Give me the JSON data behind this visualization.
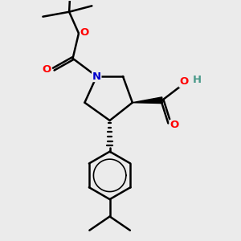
{
  "bg_color": "#ebebeb",
  "bond_color": "#000000",
  "N_color": "#0000cc",
  "O_color": "#ff0000",
  "H_color": "#4a9a8a",
  "line_width": 1.8,
  "fig_width": 3.0,
  "fig_height": 3.0,
  "dpi": 100,
  "xlim": [
    0,
    10
  ],
  "ylim": [
    0,
    10
  ]
}
